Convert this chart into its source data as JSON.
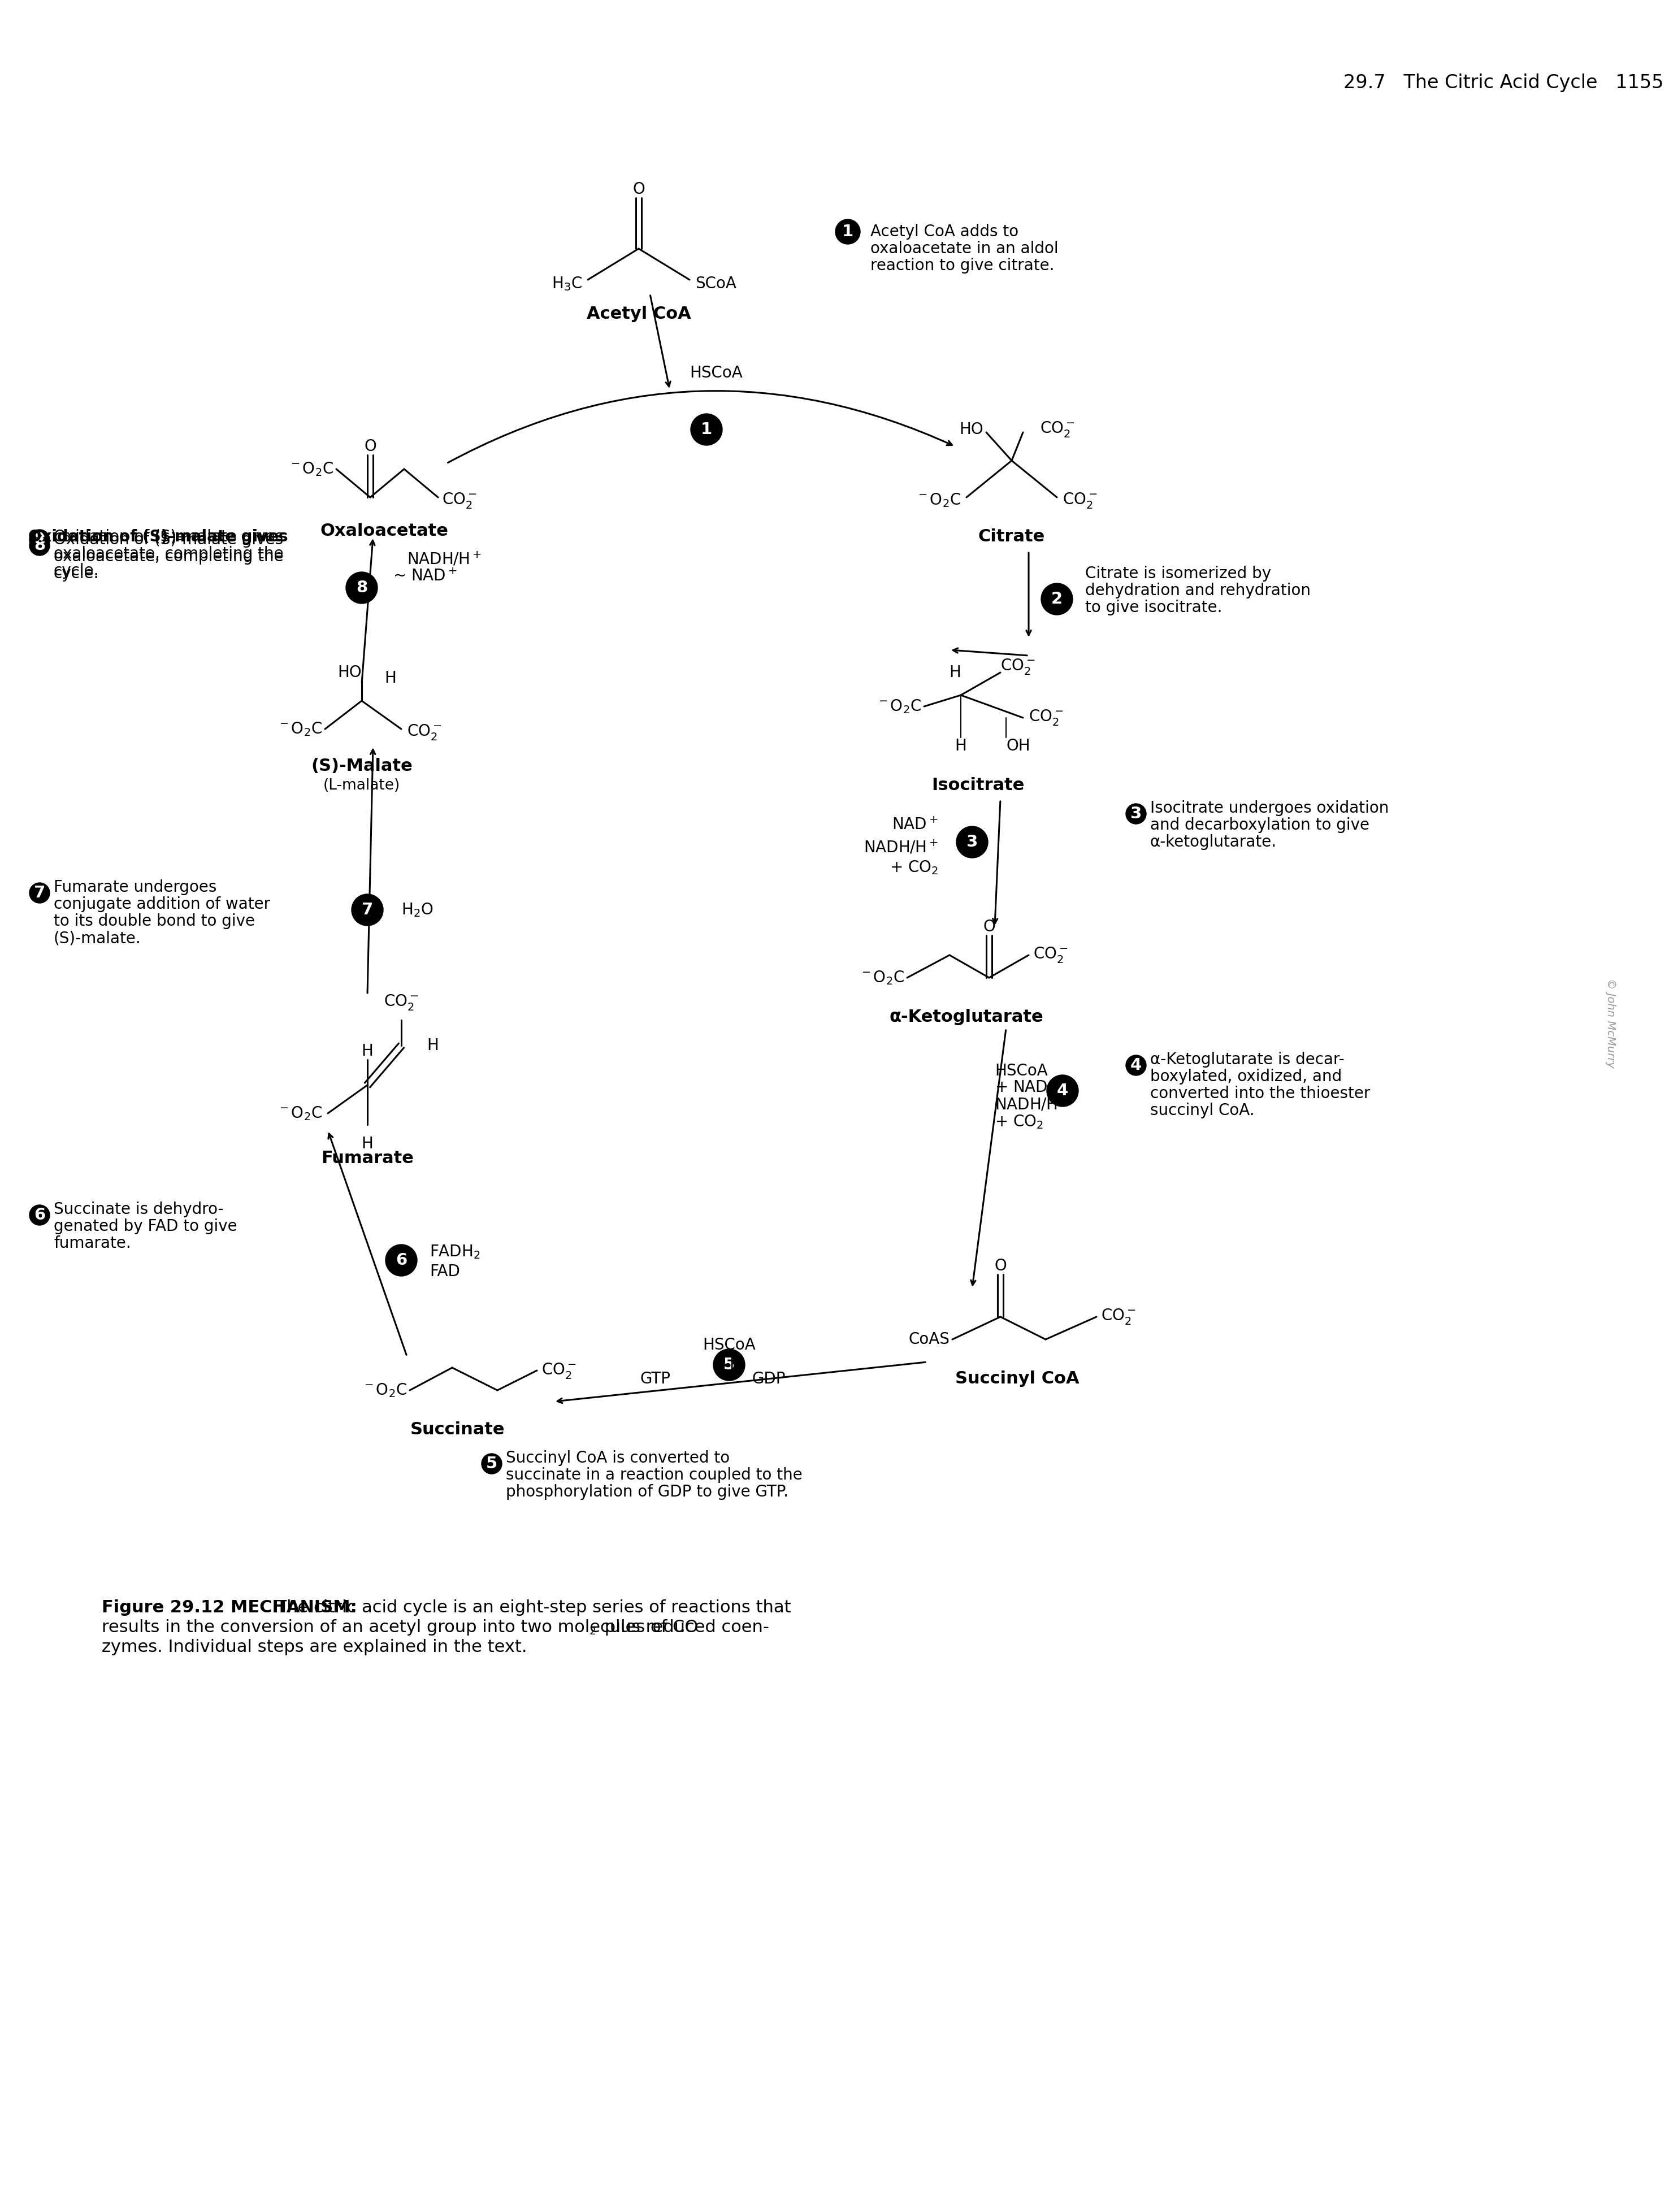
{
  "page_header": "29.7   The Citric Acid Cycle   1155",
  "bg_color": "#ffffff",
  "ann1": [
    "Acetyl CoA adds to",
    "oxaloacetate in an aldol",
    "reaction to give citrate."
  ],
  "ann2": [
    "Citrate is isomerized by",
    "dehydration and rehydration",
    "to give isocitrate."
  ],
  "ann3": [
    "Isocitrate undergoes oxidation",
    "and decarboxylation to give",
    "α-ketoglutarate."
  ],
  "ann4": [
    "α-Ketoglutarate is decar-",
    "boxylated, oxidized, and",
    "converted into the thioester",
    "succinyl CoA."
  ],
  "ann5": [
    "Succinyl CoA is converted to",
    "succinate in a reaction coupled to the",
    "phosphorylation of GDP to give GTP."
  ],
  "ann6": [
    "Succinate is dehydro-",
    "genated by FAD to give",
    "fumarate."
  ],
  "ann7": [
    "Fumarate undergoes",
    "conjugate addition of water",
    "to its double bond to give",
    "(S)-malate."
  ],
  "ann8": [
    "Oxidation of (S)-malate gives",
    "oxaloacetate, completing the",
    "cycle."
  ],
  "fig_caption_bold": "Figure 29.12 MECHANISM:",
  "fig_caption_rest": " The citric acid cycle is an eight-step series of reactions that",
  "fig_caption2a": "results in the conversion of an acetyl group into two molecules of CO",
  "fig_caption2b": " plus reduced coen-",
  "fig_caption3": "zymes. Individual steps are explained in the text."
}
